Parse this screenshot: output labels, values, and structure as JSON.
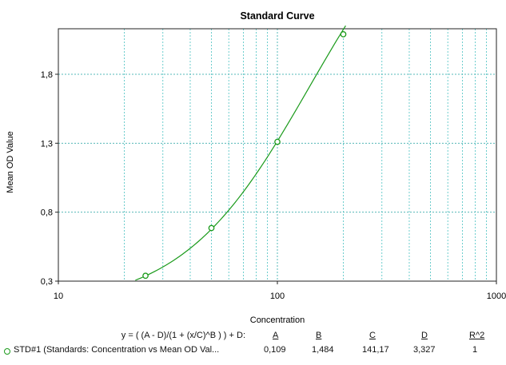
{
  "chart_data": {
    "type": "scatter",
    "title": "Standard Curve",
    "xlabel": "Concentration",
    "ylabel": "Mean OD Value",
    "xscale": "log",
    "xlim": [
      10,
      1000
    ],
    "ylim": [
      0.3,
      2.13
    ],
    "x_ticks": [
      {
        "value": 10,
        "label": "10"
      },
      {
        "value": 100,
        "label": "100"
      },
      {
        "value": 1000,
        "label": "1000"
      }
    ],
    "y_ticks": [
      {
        "value": 0.3,
        "label": "0,3"
      },
      {
        "value": 0.8,
        "label": "0,8"
      },
      {
        "value": 1.3,
        "label": "1,3"
      },
      {
        "value": 1.8,
        "label": "1,8"
      }
    ],
    "grid": true,
    "series": [
      {
        "name": "STD#1 (Standards: Concentration vs Mean OD Val...",
        "x": [
          25,
          50,
          100,
          200
        ],
        "y": [
          0.339,
          0.685,
          1.31,
          2.09
        ]
      }
    ],
    "fit": {
      "equation": "y = ( (A - D)/(1 + (x/C)^B ) ) + D:",
      "A": 0.109,
      "B": 1.484,
      "C": 141.17,
      "D": 3.327
    },
    "colors": {
      "series": "#1a9a1a",
      "grid_major": "#55b8b8",
      "grid_minor": "#5ec8c8"
    }
  },
  "legend": {
    "equation": "y = ( (A - D)/(1 + (x/C)^B ) ) + D:",
    "headers": [
      "A",
      "B",
      "C",
      "D",
      "R^2"
    ],
    "series_label": "STD#1 (Standards: Concentration vs Mean OD Val...",
    "values": [
      "0,109",
      "1,484",
      "141,17",
      "3,327",
      "1"
    ]
  }
}
